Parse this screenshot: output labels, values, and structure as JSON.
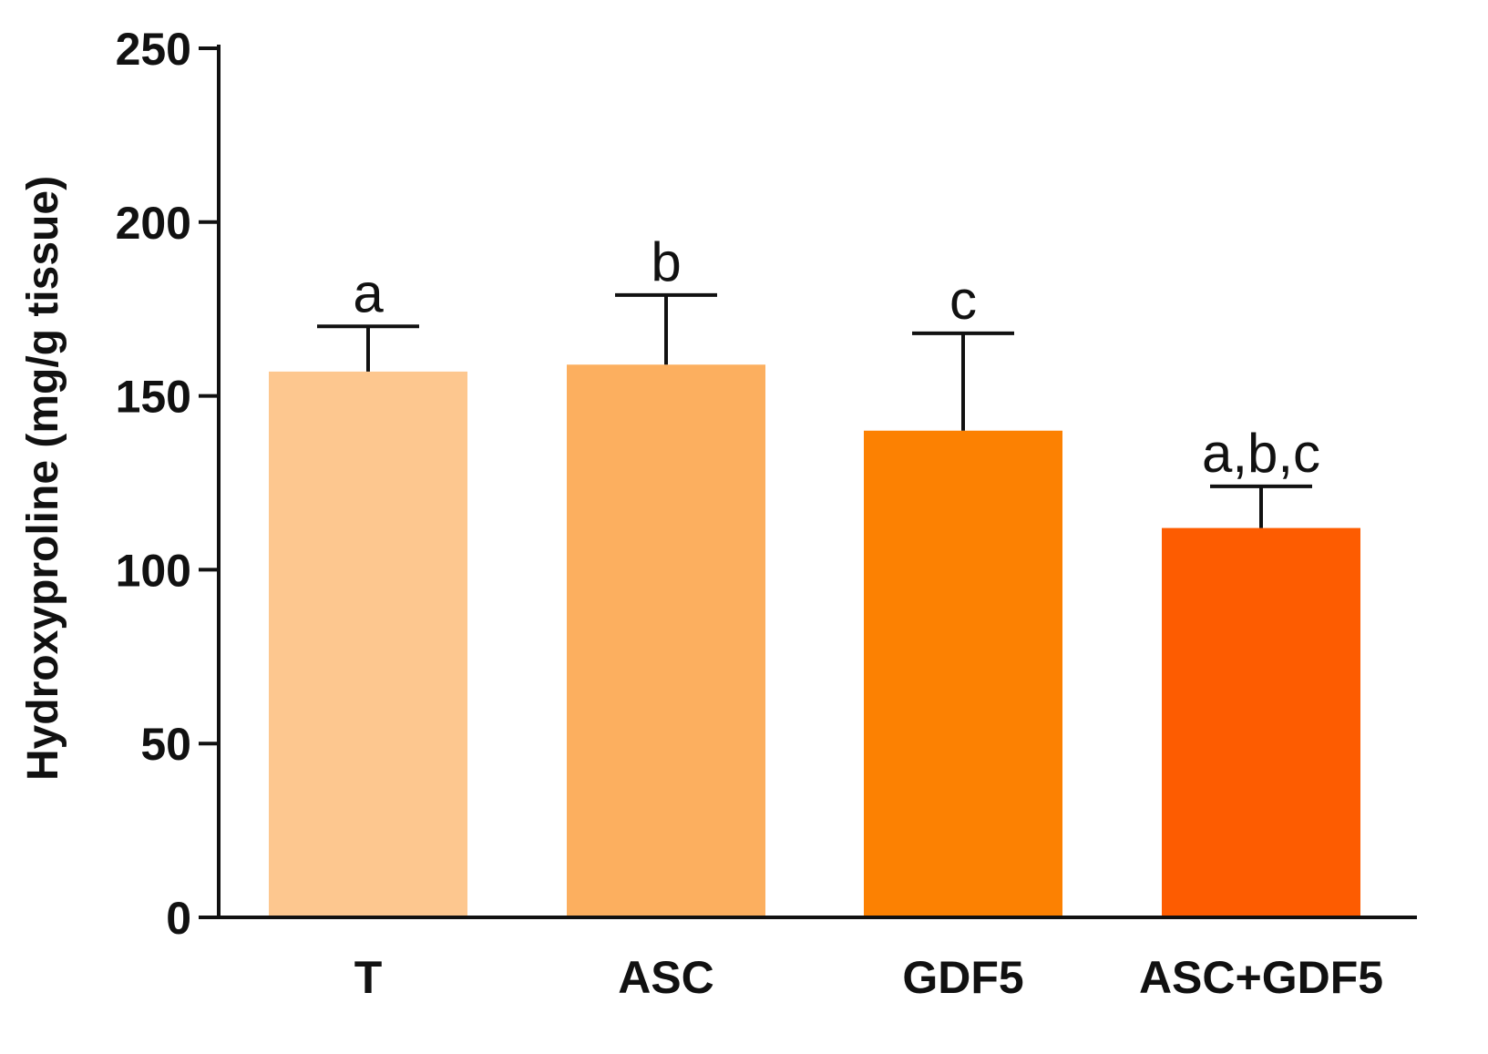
{
  "chart_data": {
    "type": "bar",
    "title": "",
    "xlabel": "",
    "ylabel": "Hydroxyproline (mg/g tissue)",
    "ylim": [
      0,
      250
    ],
    "yticks": [
      0,
      50,
      100,
      150,
      200,
      250
    ],
    "categories": [
      "T",
      "ASC",
      "GDF5",
      "ASC+GDF5"
    ],
    "values": [
      157,
      159,
      140,
      112
    ],
    "errors": [
      13,
      20,
      28,
      12
    ],
    "significance_labels": [
      "a",
      "b",
      "c",
      "a,b,c"
    ],
    "colors": [
      "#FDC78F",
      "#FCAF5F",
      "#FC8102",
      "#FD5C01"
    ],
    "grid": false,
    "legend": "none"
  }
}
